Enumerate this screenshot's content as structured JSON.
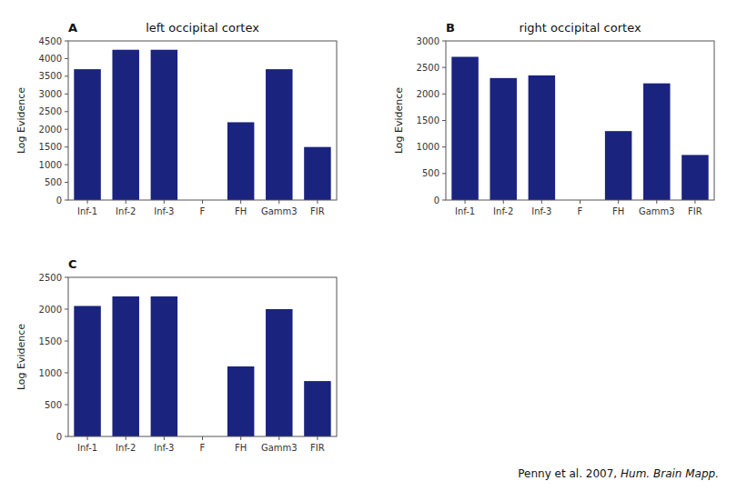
{
  "chart_data": [
    {
      "type": "bar",
      "title": "left occipital cortex",
      "ylabel": "Log Evidence",
      "annotations": [
        "A"
      ],
      "categories": [
        "Inf-1",
        "Inf-2",
        "Inf-3",
        "F",
        "FH",
        "Gamm3",
        "FIR"
      ],
      "values": [
        3700,
        4250,
        4250,
        0,
        2200,
        3700,
        1500
      ],
      "color": "#1a237e",
      "ylim": [
        0,
        4500
      ],
      "yticks": [
        0,
        500,
        1000,
        1500,
        2000,
        2500,
        3000,
        3500,
        4000,
        4500
      ],
      "grid": false
    },
    {
      "type": "bar",
      "title": "right occipital cortex",
      "ylabel": "Log Evidence",
      "annotations": [
        "B"
      ],
      "categories": [
        "Inf-1",
        "Inf-2",
        "Inf-3",
        "F",
        "FH",
        "Gamm3",
        "FIR"
      ],
      "values": [
        2700,
        2300,
        2350,
        0,
        1300,
        2200,
        850
      ],
      "color": "#1a237e",
      "ylim": [
        0,
        3000
      ],
      "yticks": [
        0,
        500,
        1000,
        1500,
        2000,
        2500,
        3000
      ],
      "grid": false
    },
    {
      "type": "bar",
      "ylabel": "Log Evidence",
      "annotations": [
        "C",
        "Penny et al. 2007, ",
        "Hum. Brain Mapp."
      ],
      "categories": [
        "Inf-1",
        "Inf-2",
        "Inf-3",
        "F",
        "FH",
        "Gamm3",
        "FIR"
      ],
      "values": [
        2050,
        2200,
        2200,
        0,
        1100,
        2000,
        870
      ],
      "color": "#1a237e",
      "ylim": [
        0,
        2500
      ],
      "yticks": [
        0,
        500,
        1000,
        1500,
        2000,
        2500
      ],
      "grid": false
    }
  ]
}
